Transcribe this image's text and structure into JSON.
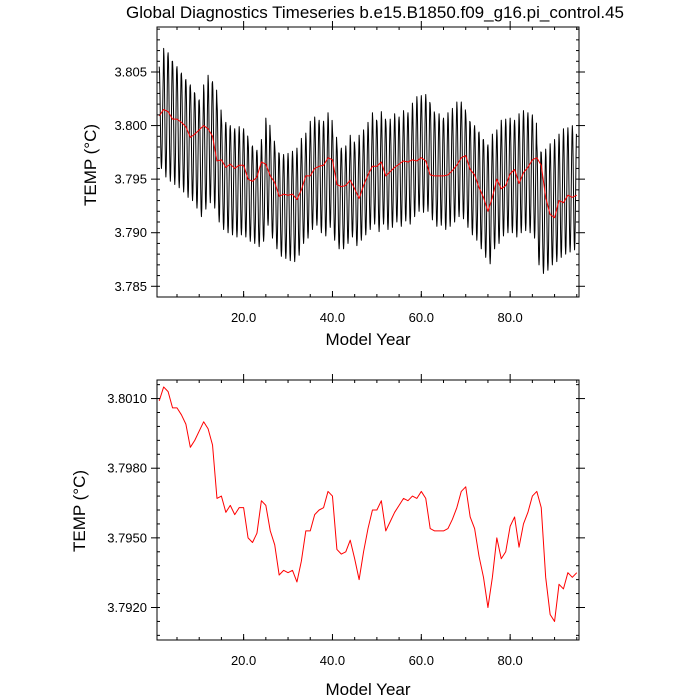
{
  "chart_data": [
    {
      "type": "line",
      "title": "Global Diagnostics Timeseries b.e15.B1850.f09_g16.pi_control.45",
      "xlabel": "Model Year",
      "ylabel": "TEMP (°C)",
      "xlim": [
        0.5,
        95.5
      ],
      "ylim": [
        3.784,
        3.8092
      ],
      "x_ticks": [
        20.0,
        40.0,
        60.0,
        80.0
      ],
      "x_tick_labels": [
        "20.0",
        "40.0",
        "60.0",
        "80.0"
      ],
      "y_ticks": [
        3.785,
        3.79,
        3.795,
        3.8,
        3.805
      ],
      "y_tick_labels": [
        "3.785",
        "3.790",
        "3.795",
        "3.800",
        "3.805"
      ],
      "grid": false,
      "series": [
        {
          "color": "#000000",
          "description": "monthly",
          "x_start": 1,
          "x_step": 0.0833,
          "upper_envelope": [
            3.8055,
            3.8072,
            3.8068,
            3.806,
            3.8055,
            3.8049,
            3.8043,
            3.8038,
            3.803,
            3.8024,
            3.8038,
            3.8047,
            3.8041,
            3.8022,
            3.8007,
            3.8003,
            3.8,
            3.7997,
            3.7999,
            3.7997,
            3.7986,
            3.7981,
            3.7977,
            3.7987,
            3.8007,
            3.7992,
            3.7981,
            3.7974,
            3.7973,
            3.7974,
            3.7976,
            3.7979,
            3.7988,
            3.7993,
            3.8004,
            3.8008,
            3.8005,
            3.8004,
            3.8012,
            3.7996,
            3.7982,
            3.7979,
            3.7981,
            3.7991,
            3.7982,
            3.7991,
            3.7996,
            3.8003,
            3.8012,
            3.8004,
            3.8013,
            3.8004,
            3.8006,
            3.8011,
            3.8008,
            3.8014,
            3.8012,
            3.8021,
            3.8027,
            3.8028,
            3.8029,
            3.802,
            3.801,
            3.8011,
            3.8007,
            3.8012,
            3.8016,
            3.8022,
            3.8022,
            3.8011,
            3.8003,
            3.8,
            3.7994,
            3.7987,
            3.7982,
            3.7992,
            3.7996,
            3.8005,
            3.8006,
            3.8007,
            3.8005,
            3.8011,
            3.8014,
            3.8012,
            3.801,
            3.7983,
            3.7975,
            3.7978,
            3.7983,
            3.7987,
            3.7992,
            3.7997,
            3.7998,
            3.8
          ],
          "lower_envelope": [
            3.796,
            3.7952,
            3.7948,
            3.7945,
            3.7942,
            3.7938,
            3.7933,
            3.793,
            3.7923,
            3.7915,
            3.7922,
            3.7928,
            3.7923,
            3.791,
            3.7903,
            3.79,
            3.7898,
            3.7896,
            3.7898,
            3.7896,
            3.7892,
            3.789,
            3.7887,
            3.7892,
            3.7907,
            3.7895,
            3.7885,
            3.7878,
            3.7876,
            3.7874,
            3.7873,
            3.7879,
            3.789,
            3.7895,
            3.7903,
            3.7907,
            3.79,
            3.7897,
            3.7905,
            3.7893,
            3.7885,
            3.7885,
            3.789,
            3.7896,
            3.7888,
            3.7893,
            3.7898,
            3.7903,
            3.7908,
            3.7901,
            3.7908,
            3.7903,
            3.7905,
            3.791,
            3.7906,
            3.7911,
            3.7908,
            3.7915,
            3.792,
            3.7919,
            3.792,
            3.7912,
            3.7906,
            3.7907,
            3.7903,
            3.7906,
            3.791,
            3.7915,
            3.7913,
            3.7905,
            3.7898,
            3.7893,
            3.7885,
            3.7877,
            3.7871,
            3.7885,
            3.789,
            3.7897,
            3.79,
            3.79,
            3.7896,
            3.79,
            3.7902,
            3.79,
            3.7895,
            3.787,
            3.7862,
            3.7865,
            3.787,
            3.7873,
            3.7877,
            3.788,
            3.7882,
            3.7884
          ]
        },
        {
          "color": "#ff0000",
          "description": "annual",
          "x": [
            1,
            2,
            3,
            4,
            5,
            6,
            7,
            8,
            9,
            10,
            11,
            12,
            13,
            14,
            15,
            16,
            17,
            18,
            19,
            20,
            21,
            22,
            23,
            24,
            25,
            26,
            27,
            28,
            29,
            30,
            31,
            32,
            33,
            34,
            35,
            36,
            37,
            38,
            39,
            40,
            41,
            42,
            43,
            44,
            45,
            46,
            47,
            48,
            49,
            50,
            51,
            52,
            53,
            54,
            55,
            56,
            57,
            58,
            59,
            60,
            61,
            62,
            63,
            64,
            65,
            66,
            67,
            68,
            69,
            70,
            71,
            72,
            73,
            74,
            75,
            76,
            77,
            78,
            79,
            80,
            81,
            82,
            83,
            84,
            85,
            86,
            87,
            88,
            89,
            90,
            91,
            92,
            93,
            94,
            95
          ],
          "y": [
            3.8009,
            3.8015,
            3.8013,
            3.8006,
            3.8006,
            3.8003,
            3.7999,
            3.7989,
            3.7992,
            3.7996,
            3.8,
            3.7997,
            3.799,
            3.7967,
            3.7968,
            3.7961,
            3.7964,
            3.796,
            3.7963,
            3.7963,
            3.795,
            3.7948,
            3.7952,
            3.7966,
            3.7964,
            3.7953,
            3.7947,
            3.7934,
            3.7936,
            3.7935,
            3.7936,
            3.7931,
            3.794,
            3.7953,
            3.7953,
            3.796,
            3.7962,
            3.7963,
            3.797,
            3.7968,
            3.7945,
            3.7943,
            3.7944,
            3.7949,
            3.7941,
            3.7932,
            3.7944,
            3.7954,
            3.7962,
            3.7962,
            3.7966,
            3.7953,
            3.7957,
            3.7961,
            3.7964,
            3.7967,
            3.7966,
            3.7968,
            3.7967,
            3.797,
            3.7967,
            3.7954,
            3.7953,
            3.7953,
            3.7953,
            3.7954,
            3.7958,
            3.7963,
            3.797,
            3.7972,
            3.7959,
            3.7954,
            3.7942,
            3.7933,
            3.792,
            3.7933,
            3.795,
            3.7941,
            3.7944,
            3.7955,
            3.7959,
            3.7946,
            3.7956,
            3.7961,
            3.7968,
            3.797,
            3.7963,
            3.7933,
            3.7917,
            3.7914,
            3.793,
            3.7928,
            3.7935,
            3.7933,
            3.7935
          ]
        }
      ]
    },
    {
      "type": "line",
      "title": "",
      "xlabel": "Model Year",
      "ylabel": "TEMP (°C)",
      "xlim": [
        0.5,
        95.5
      ],
      "ylim": [
        3.7906,
        3.8018
      ],
      "x_ticks": [
        20.0,
        40.0,
        60.0,
        80.0
      ],
      "x_tick_labels": [
        "20.0",
        "40.0",
        "60.0",
        "80.0"
      ],
      "y_ticks": [
        3.792,
        3.795,
        3.798,
        3.801
      ],
      "y_tick_labels": [
        "3.7920",
        "3.7950",
        "3.7980",
        "3.8010"
      ],
      "grid": false,
      "series": [
        {
          "color": "#ff0000",
          "x": [
            1,
            2,
            3,
            4,
            5,
            6,
            7,
            8,
            9,
            10,
            11,
            12,
            13,
            14,
            15,
            16,
            17,
            18,
            19,
            20,
            21,
            22,
            23,
            24,
            25,
            26,
            27,
            28,
            29,
            30,
            31,
            32,
            33,
            34,
            35,
            36,
            37,
            38,
            39,
            40,
            41,
            42,
            43,
            44,
            45,
            46,
            47,
            48,
            49,
            50,
            51,
            52,
            53,
            54,
            55,
            56,
            57,
            58,
            59,
            60,
            61,
            62,
            63,
            64,
            65,
            66,
            67,
            68,
            69,
            70,
            71,
            72,
            73,
            74,
            75,
            76,
            77,
            78,
            79,
            80,
            81,
            82,
            83,
            84,
            85,
            86,
            87,
            88,
            89,
            90,
            91,
            92,
            93,
            94,
            95
          ],
          "y": [
            3.8009,
            3.8015,
            3.8013,
            3.8006,
            3.8006,
            3.8003,
            3.7999,
            3.7989,
            3.7992,
            3.7996,
            3.8,
            3.7997,
            3.799,
            3.7967,
            3.7968,
            3.7961,
            3.7964,
            3.796,
            3.7963,
            3.7963,
            3.795,
            3.7948,
            3.7952,
            3.7966,
            3.7964,
            3.7953,
            3.7947,
            3.7934,
            3.7936,
            3.7935,
            3.7936,
            3.7931,
            3.794,
            3.7953,
            3.7953,
            3.796,
            3.7962,
            3.7963,
            3.797,
            3.7968,
            3.7945,
            3.7943,
            3.7944,
            3.7949,
            3.7941,
            3.7932,
            3.7944,
            3.7954,
            3.7962,
            3.7962,
            3.7966,
            3.7953,
            3.7957,
            3.7961,
            3.7964,
            3.7967,
            3.7966,
            3.7968,
            3.7967,
            3.797,
            3.7967,
            3.7954,
            3.7953,
            3.7953,
            3.7953,
            3.7954,
            3.7958,
            3.7963,
            3.797,
            3.7972,
            3.7959,
            3.7954,
            3.7942,
            3.7933,
            3.792,
            3.7933,
            3.795,
            3.7941,
            3.7944,
            3.7955,
            3.7959,
            3.7946,
            3.7956,
            3.7961,
            3.7968,
            3.797,
            3.7963,
            3.7933,
            3.7917,
            3.7914,
            3.793,
            3.7928,
            3.7935,
            3.7933,
            3.7935
          ]
        }
      ]
    }
  ]
}
